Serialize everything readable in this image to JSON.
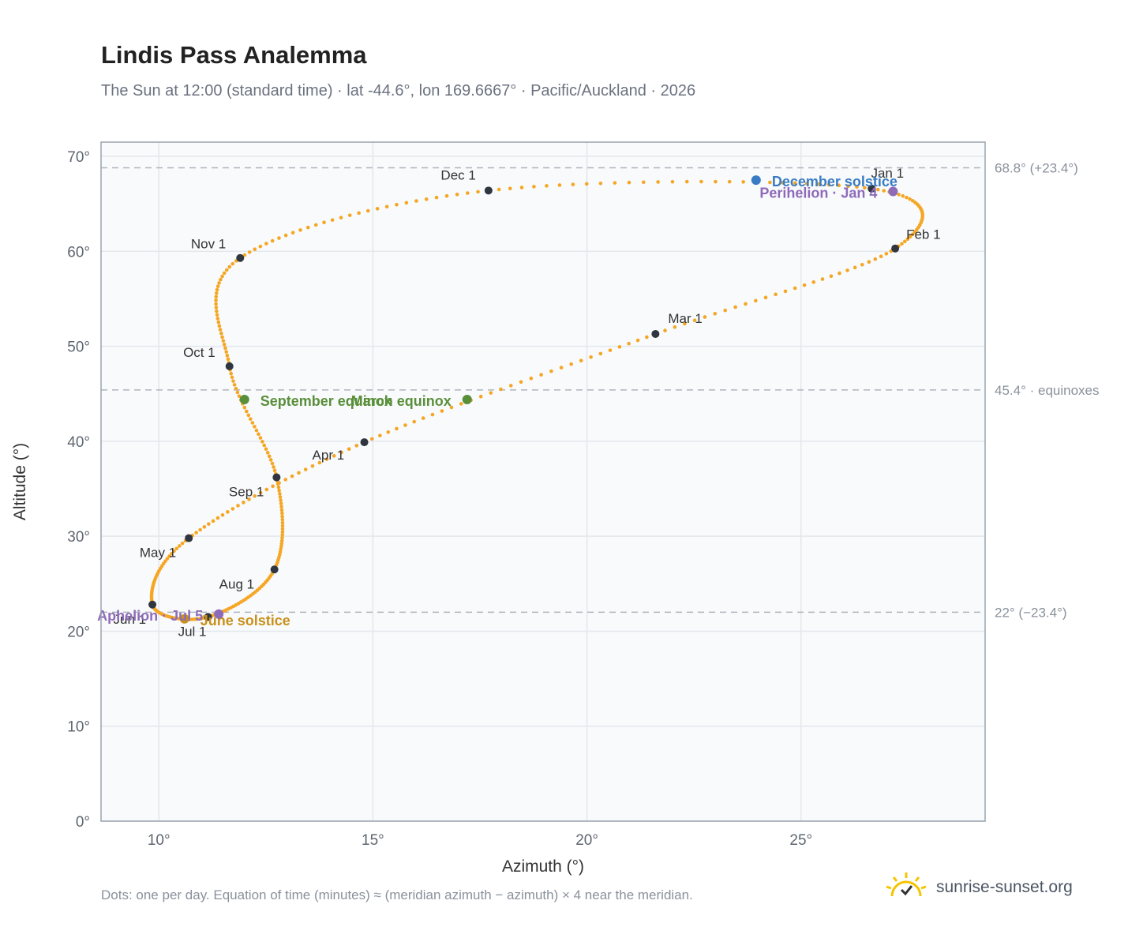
{
  "title": "Lindis Pass Analemma",
  "subtitle": "The Sun at 12:00 (standard time) · lat -44.6°, lon 169.6667° · Pacific/Auckland · 2026",
  "footnote": "Dots: one per day. Equation of time (minutes) ≈ (meridian azimuth − azimuth) × 4 near the meridian.",
  "brand": {
    "text": "sunrise-sunset.org",
    "icon": "sun-logo-icon"
  },
  "chart_data": {
    "type": "scatter",
    "xlabel": "Azimuth (°)",
    "ylabel": "Altitude (°)",
    "xlim": [
      8.65,
      29.3
    ],
    "ylim": [
      0,
      71.5
    ],
    "xticks": [
      10,
      15,
      20,
      25
    ],
    "yticks": [
      0,
      10,
      20,
      30,
      40,
      50,
      60,
      70
    ],
    "x_tick_labels": [
      "10°",
      "15°",
      "20°",
      "25°"
    ],
    "y_tick_labels": [
      "0°",
      "10°",
      "20°",
      "30°",
      "40°",
      "50°",
      "60°",
      "70°"
    ],
    "grid": true,
    "reference_lines": [
      {
        "altitude": 68.8,
        "label": "68.8° (+23.4°)"
      },
      {
        "altitude": 45.4,
        "label": "45.4° · equinoxes"
      },
      {
        "altitude": 22.0,
        "label": "22° (−23.4°)"
      }
    ],
    "path_color": "#f5a623",
    "month_starts": [
      {
        "label": "Jan 1",
        "azimuth": 26.65,
        "altitude": 66.6
      },
      {
        "label": "Feb 1",
        "azimuth": 27.2,
        "altitude": 60.3
      },
      {
        "label": "Mar 1",
        "azimuth": 21.6,
        "altitude": 51.3
      },
      {
        "label": "Apr 1",
        "azimuth": 14.8,
        "altitude": 39.9
      },
      {
        "label": "May 1",
        "azimuth": 10.7,
        "altitude": 29.8
      },
      {
        "label": "Jun 1",
        "azimuth": 9.85,
        "altitude": 22.8
      },
      {
        "label": "Jul 1",
        "azimuth": 11.15,
        "altitude": 21.5
      },
      {
        "label": "Aug 1",
        "azimuth": 12.7,
        "altitude": 26.5
      },
      {
        "label": "Sep 1",
        "azimuth": 12.75,
        "altitude": 36.2
      },
      {
        "label": "Oct 1",
        "azimuth": 11.65,
        "altitude": 47.9
      },
      {
        "label": "Nov 1",
        "azimuth": 11.9,
        "altitude": 59.3
      },
      {
        "label": "Dec 1",
        "azimuth": 17.7,
        "altitude": 66.4
      }
    ],
    "events": [
      {
        "label": "December solstice",
        "azimuth": 23.95,
        "altitude": 67.5,
        "color": "#3a7cc3"
      },
      {
        "label": "Perihelion · Jan 4",
        "azimuth": 27.15,
        "altitude": 66.3,
        "color": "#8e6bb8"
      },
      {
        "label": "March equinox",
        "azimuth": 17.2,
        "altitude": 44.4,
        "color": "#5a8f3a"
      },
      {
        "label": "September equinox",
        "azimuth": 12.0,
        "altitude": 44.4,
        "color": "#5a8f3a"
      },
      {
        "label": "June solstice",
        "azimuth": 10.6,
        "altitude": 21.3,
        "color": "#c9901a"
      },
      {
        "label": "Aphelion · Jul 5",
        "azimuth": 11.4,
        "altitude": 21.8,
        "color": "#8e6bb8"
      }
    ]
  }
}
